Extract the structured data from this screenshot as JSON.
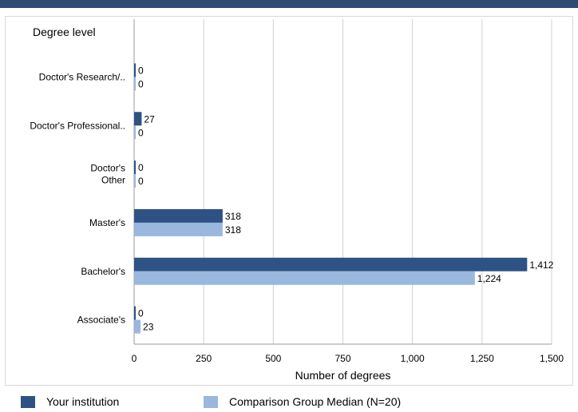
{
  "colors": {
    "top_bar": "#2f4a73",
    "primary": "#2d5283",
    "secondary": "#9ab7de",
    "grid": "#d0d0d0"
  },
  "chart_data": {
    "type": "bar",
    "orientation": "horizontal",
    "ylabel": "Degree level",
    "xlabel": "Number of degrees",
    "categories": [
      [
        "Doctor's  Research/.."
      ],
      [
        "Doctor's  Professional.."
      ],
      [
        "Doctor's",
        "Other"
      ],
      [
        "Master's"
      ],
      [
        "Bachelor's"
      ],
      [
        "Associate's"
      ]
    ],
    "series": [
      {
        "name": "Your institution",
        "values": [
          0,
          27,
          0,
          318,
          1412,
          0
        ],
        "value_labels": [
          "0",
          "27",
          "0",
          "318",
          "1,412",
          "0"
        ]
      },
      {
        "name": "Comparison Group Median (N=20)",
        "values": [
          0,
          0,
          0,
          318,
          1224,
          23
        ],
        "value_labels": [
          "0",
          "0",
          "0",
          "318",
          "1,224",
          "23"
        ]
      }
    ],
    "xlim": [
      0,
      1500
    ],
    "xticks": [
      0,
      250,
      500,
      750,
      1000,
      1250,
      1500
    ],
    "xtick_labels": [
      "0",
      "250",
      "500",
      "750",
      "1,000",
      "1,250",
      "1,500"
    ],
    "grid": true,
    "legend": "bottom"
  }
}
